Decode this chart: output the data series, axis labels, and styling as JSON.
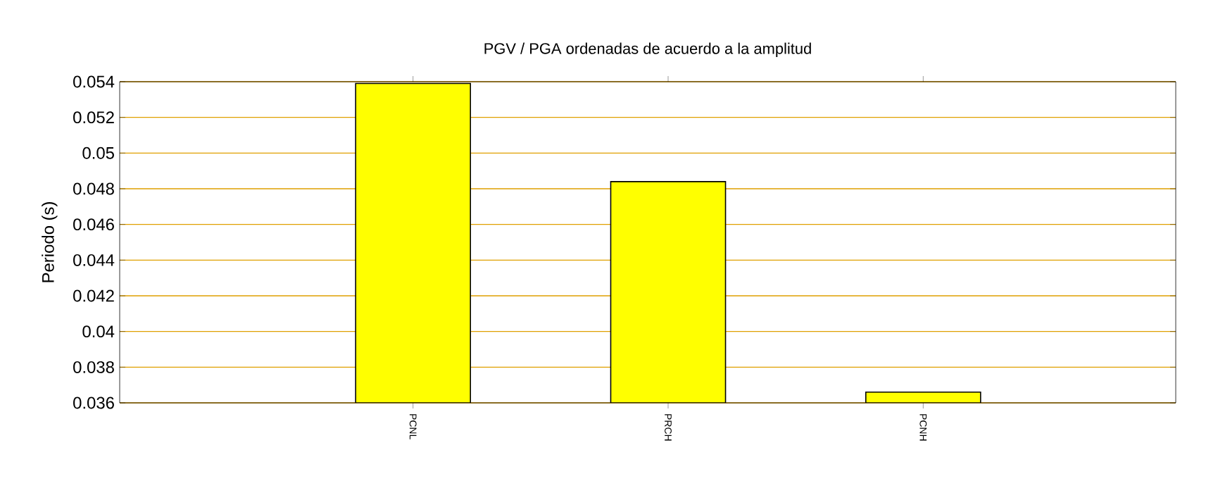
{
  "chart_data": {
    "type": "bar",
    "title": "PGV / PGA ordenadas de acuerdo a la amplitud",
    "ylabel": "Periodo (s)",
    "categories": [
      "PCNL",
      "PRCH",
      "PCNH"
    ],
    "values": [
      0.0539,
      0.0484,
      0.0366
    ],
    "color": "#ffff00",
    "ylim": [
      0.036,
      0.054
    ],
    "yticks": [
      0.036,
      0.038,
      0.04,
      0.042,
      0.044,
      0.046,
      0.048,
      0.05,
      0.052,
      0.054
    ],
    "grid": "y"
  }
}
